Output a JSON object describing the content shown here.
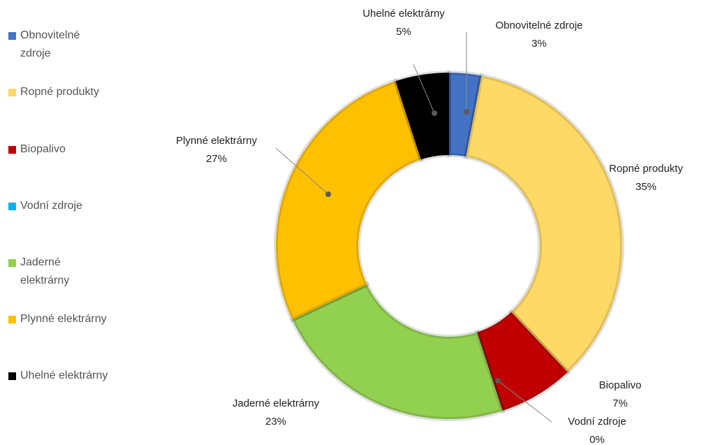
{
  "chart_data": {
    "type": "donut",
    "categories": [
      "Obnovitelné zdroje",
      "Ropné produkty",
      "Biopalivo",
      "Vodní zdroje",
      "Jaderné elektrárny",
      "Plynné elektrárny",
      "Uhelné elektrárny"
    ],
    "values": [
      3,
      35,
      7,
      0,
      23,
      27,
      5
    ],
    "value_labels": [
      "3%",
      "35%",
      "7%",
      "0%",
      "23%",
      "27%",
      "5%"
    ],
    "colors": [
      "#4472c4",
      "#ffd966",
      "#c00000",
      "#00b0f0",
      "#92d050",
      "#ffc000",
      "#000000"
    ],
    "legend": "left"
  }
}
